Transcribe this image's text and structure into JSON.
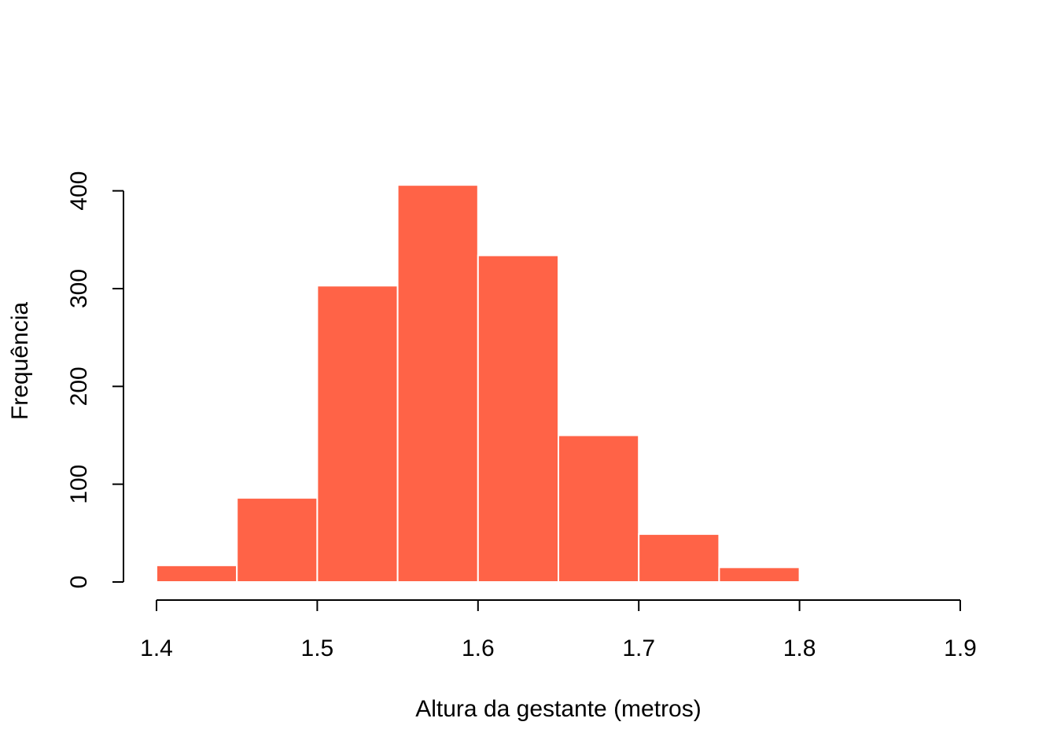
{
  "chart_data": {
    "type": "bar",
    "subtype": "histogram",
    "bin_edges": [
      1.4,
      1.45,
      1.5,
      1.55,
      1.6,
      1.65,
      1.7,
      1.75,
      1.8
    ],
    "values": [
      17,
      86,
      303,
      406,
      334,
      150,
      49,
      15
    ],
    "xlabel": "Altura da gestante (metros)",
    "ylabel": "Frequência",
    "xlim": [
      1.4,
      1.9
    ],
    "ylim": [
      0,
      450
    ],
    "x_ticks": [
      1.4,
      1.5,
      1.6,
      1.7,
      1.8,
      1.9
    ],
    "x_tick_labels": [
      "1.4",
      "1.5",
      "1.6",
      "1.7",
      "1.8",
      "1.9"
    ],
    "y_ticks": [
      0,
      100,
      200,
      300,
      400
    ],
    "y_tick_labels": [
      "0",
      "100",
      "200",
      "300",
      "400"
    ],
    "bar_color": "#FF6347",
    "bar_border_color": "#FFFFFF",
    "grid": false,
    "legend": "none"
  }
}
